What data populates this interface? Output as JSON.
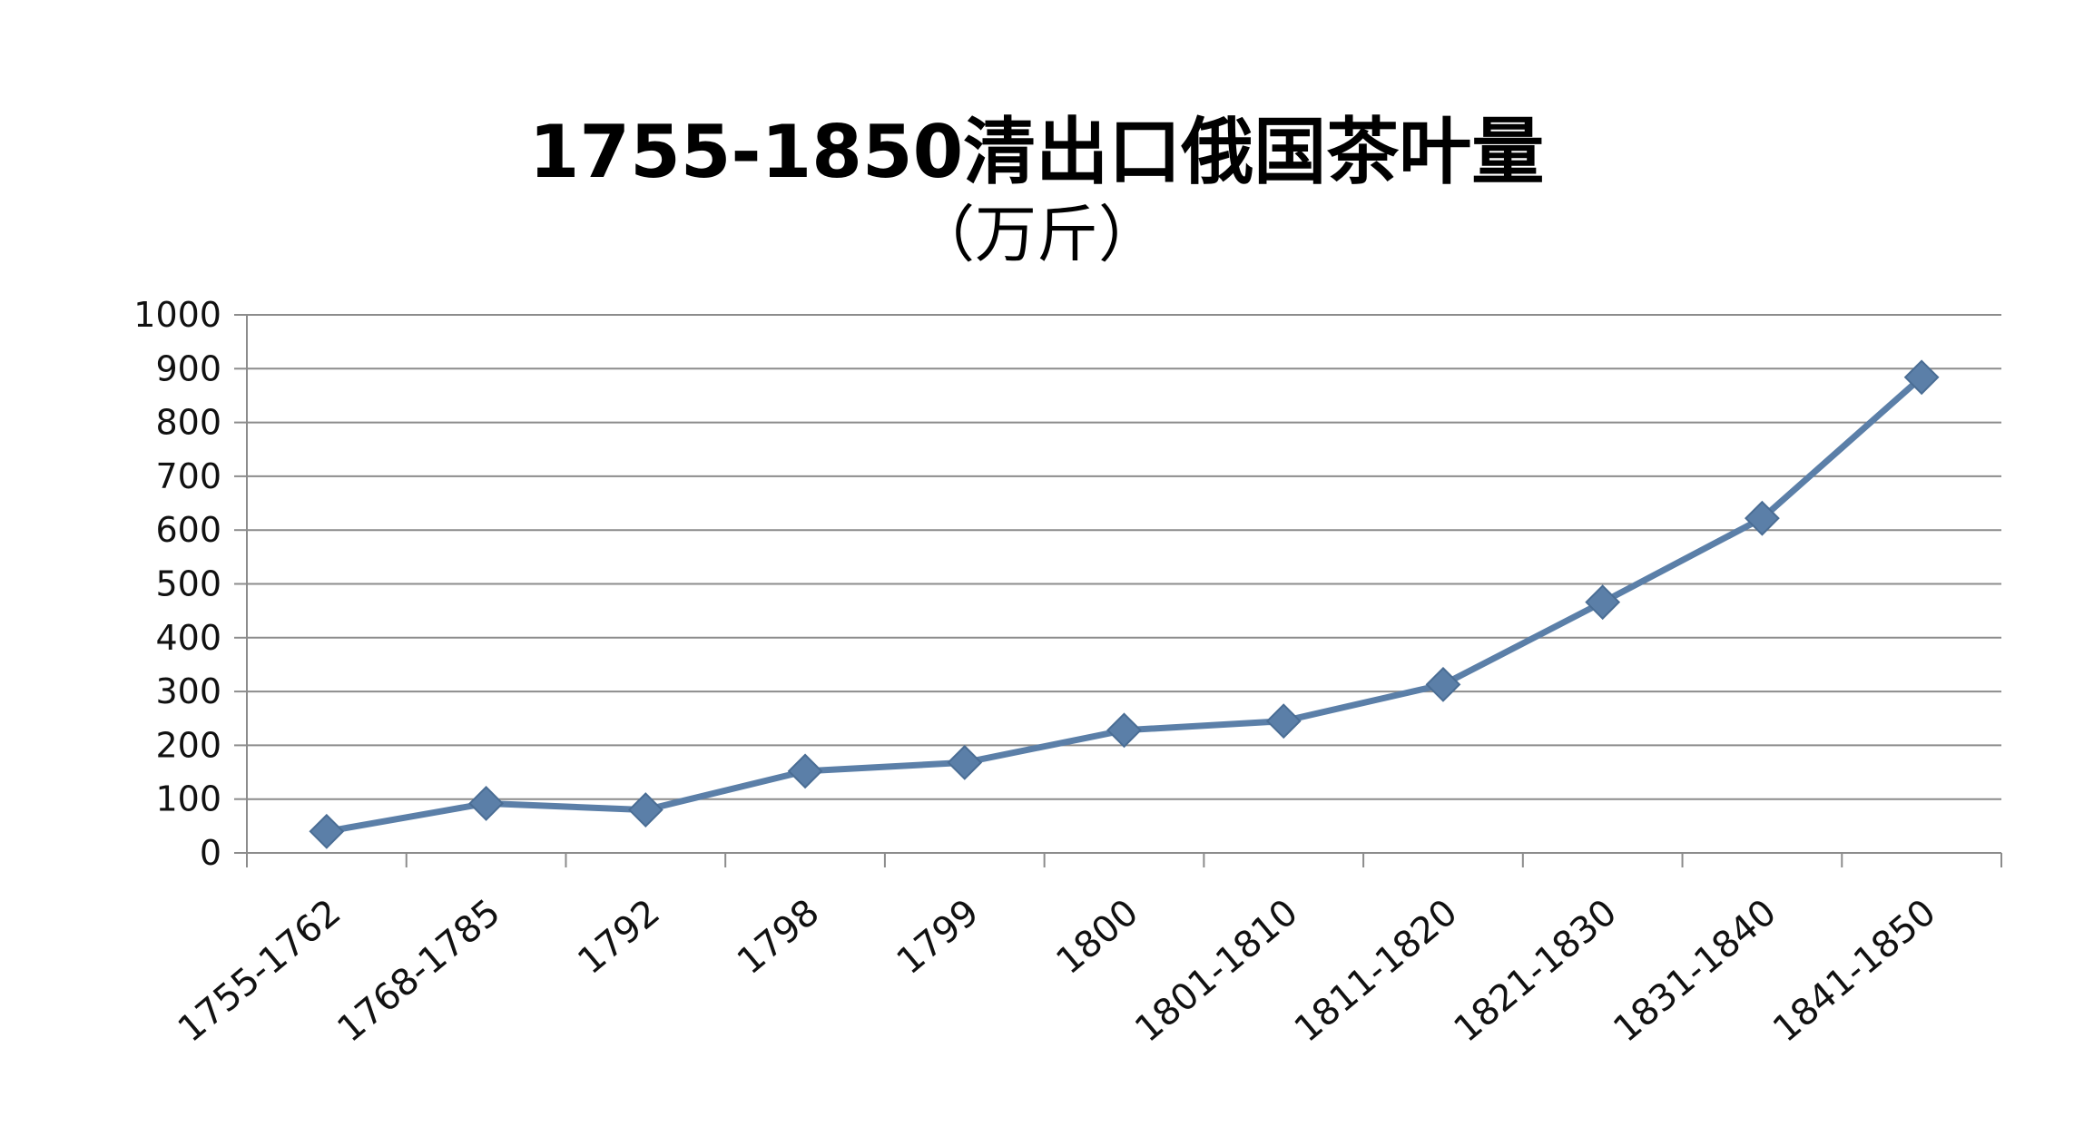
{
  "chart_data": {
    "type": "line",
    "title": "1755-1850清出口俄国茶叶量",
    "subtitle": "（万斤）",
    "xlabel": "",
    "ylabel": "",
    "ylim": [
      0,
      1000
    ],
    "y_ticks": [
      0,
      100,
      200,
      300,
      400,
      500,
      600,
      700,
      800,
      900,
      1000
    ],
    "grid": true,
    "legend": "none",
    "categories": [
      "1755-1762",
      "1768-1785",
      "1792",
      "1798",
      "1799",
      "1800",
      "1801-1810",
      "1811-1820",
      "1821-1830",
      "1831-1840",
      "1841-1850"
    ],
    "series": [
      {
        "values": [
          40,
          92,
          80,
          152,
          168,
          228,
          245,
          313,
          466,
          622,
          884
        ],
        "color": "#5b7fa8",
        "marker": "diamond"
      }
    ]
  }
}
